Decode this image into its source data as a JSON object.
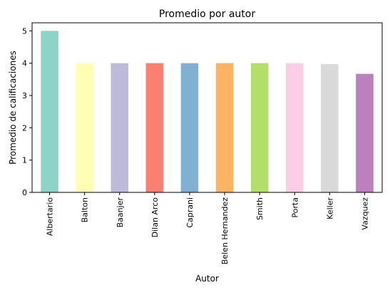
{
  "chart_data": {
    "type": "bar",
    "title": "Promedio por autor",
    "xlabel": "Autor",
    "ylabel": "Promedio de calificaciones",
    "categories": [
      "Albertario",
      "Balton",
      "Baanjer",
      "Dilan Arco",
      "Caprani",
      "Belen Hernandez",
      "Smith",
      "Porta",
      "Keller",
      "Vazquez"
    ],
    "values": [
      5.0,
      4.0,
      4.0,
      4.0,
      4.0,
      4.0,
      4.0,
      4.0,
      3.97,
      3.67
    ],
    "colors": [
      "#8dd3c7",
      "#ffffb3",
      "#bebada",
      "#fb8072",
      "#80b1d3",
      "#fdb462",
      "#b3de69",
      "#fccde5",
      "#d9d9d9",
      "#bc80bd"
    ],
    "yticks": [
      "0",
      "1",
      "2",
      "3",
      "4",
      "5"
    ],
    "ylim": [
      0,
      5.25
    ],
    "grid": false,
    "legend": false
  }
}
